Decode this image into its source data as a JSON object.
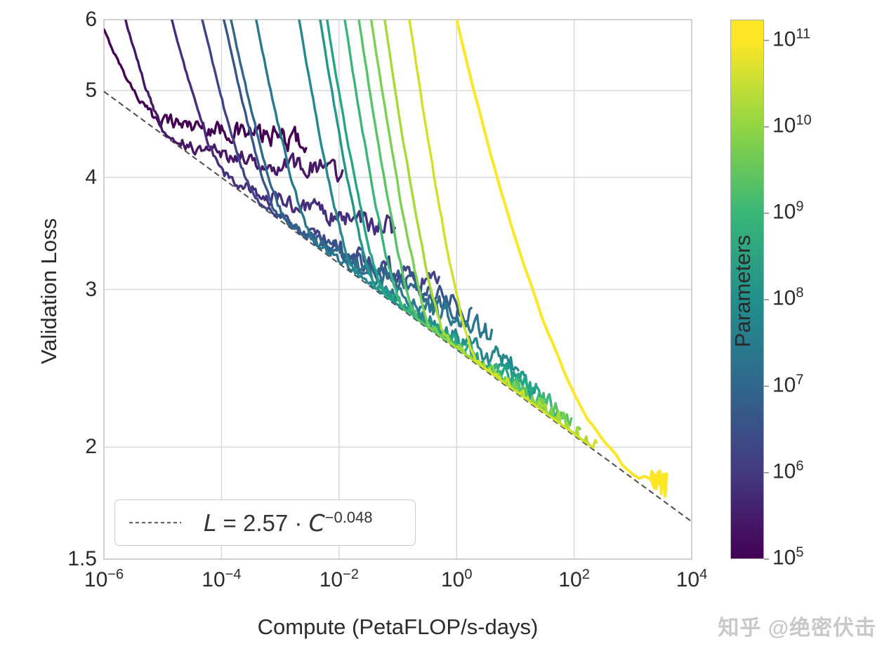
{
  "watermark": "知乎 @绝密伏击",
  "axes": {
    "x": {
      "label": "Compute (PetaFLOP/s-days)",
      "scale": "log10",
      "range_log10": [
        -6,
        4
      ],
      "ticks": [
        {
          "base": "10",
          "exp": "−6",
          "value_log10": -6
        },
        {
          "base": "10",
          "exp": "−4",
          "value_log10": -4
        },
        {
          "base": "10",
          "exp": "−2",
          "value_log10": -2
        },
        {
          "base": "10",
          "exp": "0",
          "value_log10": 0
        },
        {
          "base": "10",
          "exp": "2",
          "value_log10": 2
        },
        {
          "base": "10",
          "exp": "4",
          "value_log10": 4
        }
      ]
    },
    "y": {
      "label": "Validation Loss",
      "scale": "log10",
      "range": [
        1.5,
        6
      ],
      "ticks": [
        {
          "text": "6",
          "value": 6
        },
        {
          "text": "5",
          "value": 5
        },
        {
          "text": "4",
          "value": 4
        },
        {
          "text": "3",
          "value": 3
        },
        {
          "text": "2",
          "value": 2
        },
        {
          "text": "1.5",
          "value": 1.5
        }
      ]
    },
    "grid_color": "#d9d9d9",
    "spine_color": "#c9c9c9"
  },
  "colorbar": {
    "label": "Parameters",
    "scale": "log10",
    "range_log10": [
      5,
      11.24
    ],
    "colormap": "viridis",
    "ticks": [
      {
        "base": "10",
        "exp": "11",
        "value_log10": 11
      },
      {
        "base": "10",
        "exp": "10",
        "value_log10": 10
      },
      {
        "base": "10",
        "exp": "9",
        "value_log10": 9
      },
      {
        "base": "10",
        "exp": "8",
        "value_log10": 8
      },
      {
        "base": "10",
        "exp": "7",
        "value_log10": 7
      },
      {
        "base": "10",
        "exp": "6",
        "value_log10": 6
      },
      {
        "base": "10",
        "exp": "5",
        "value_log10": 5
      }
    ]
  },
  "legend": {
    "line_style": "dashed",
    "formula": {
      "lhs": "L",
      "eq": " = ",
      "coef": "2.57",
      "dot": " · ",
      "var": "C",
      "exp": "−0.048"
    }
  },
  "chart_data": {
    "type": "line",
    "title": "",
    "xlabel": "Compute (PetaFLOP/s-days)",
    "ylabel": "Validation Loss",
    "x_log": true,
    "y_log": true,
    "xlim_log10": [
      -6,
      4
    ],
    "ylim": [
      1.5,
      6
    ],
    "grid": true,
    "frontier_fit": {
      "formula": "L = 2.57 * C^-0.048",
      "coef": 2.57,
      "exponent": -0.048,
      "color": "#4d4d4d",
      "style": "dashed",
      "c_range_log10": [
        -6,
        4
      ]
    },
    "series_description": "Learning curves (loss vs training compute) for models of increasing parameter count; each curve enters at loss 6 at c_top_log10, descends steeply, becomes tangent to the frontier fit near c_tan_log10, then flattens toward loss_end at c_end_log10.",
    "series": [
      {
        "params_log10": 5.0,
        "color": "#440154",
        "c_top_log10": -6.0,
        "loss_top": 5.84,
        "c_tan_log10": -5.2,
        "c_end_log10": -2.56,
        "loss_end": 4.4,
        "tan_offset": 0.015,
        "steep_p": 1.3,
        "tail_p": 0.6,
        "width": 3.4
      },
      {
        "params_log10": 5.4,
        "color": "#471868",
        "c_top_log10": -5.65,
        "loss_top": 6.05,
        "c_tan_log10": -4.94,
        "c_end_log10": -1.94,
        "loss_end": 4.05,
        "tan_offset": 0.004,
        "steep_p": 1.3,
        "tail_p": 0.6,
        "width": 3.4
      },
      {
        "params_log10": 5.8,
        "color": "#452e7b",
        "c_top_log10": -4.86,
        "loss_top": 6.05,
        "c_tan_log10": -3.95,
        "c_end_log10": -1.05,
        "loss_end": 3.5,
        "tan_offset": 0.005,
        "steep_p": 1.3,
        "tail_p": 0.7,
        "width": 3.4
      },
      {
        "params_log10": 6.2,
        "color": "#404387",
        "c_top_log10": -4.34,
        "loss_top": 6.05,
        "c_tan_log10": -3.42,
        "c_end_log10": -0.3,
        "loss_end": 3.02,
        "tan_offset": 0.005,
        "steep_p": 1.3,
        "tail_p": 0.75,
        "width": 3.4
      },
      {
        "params_log10": 6.6,
        "color": "#38558b",
        "c_top_log10": -3.97,
        "loss_top": 6.05,
        "c_tan_log10": -3.05,
        "c_end_log10": 0.05,
        "loss_end": 2.88,
        "tan_offset": 0.005,
        "steep_p": 1.3,
        "tail_p": 0.8,
        "width": 3.4
      },
      {
        "params_log10": 7.0,
        "color": "#30678d",
        "c_top_log10": -3.85,
        "loss_top": 6.05,
        "c_tan_log10": -2.9,
        "c_end_log10": 0.25,
        "loss_end": 2.82,
        "tan_offset": 0.005,
        "steep_p": 1.3,
        "tail_p": 0.8,
        "width": 3.4
      },
      {
        "params_log10": 7.4,
        "color": "#29788e",
        "c_top_log10": -3.42,
        "loss_top": 6.05,
        "c_tan_log10": -2.45,
        "c_end_log10": 0.6,
        "loss_end": 2.66,
        "tan_offset": 0.005,
        "steep_p": 1.3,
        "tail_p": 0.85,
        "width": 3.4
      },
      {
        "params_log10": 7.8,
        "color": "#24888d",
        "c_top_log10": -2.69,
        "loss_top": 6.05,
        "c_tan_log10": -1.75,
        "c_end_log10": 1.05,
        "loss_end": 2.44,
        "tan_offset": 0.005,
        "steep_p": 1.3,
        "tail_p": 0.85,
        "width": 3.4
      },
      {
        "params_log10": 8.2,
        "color": "#219889",
        "c_top_log10": -2.33,
        "loss_top": 6.05,
        "c_tan_log10": -1.4,
        "c_end_log10": 1.35,
        "loss_end": 2.32,
        "tan_offset": 0.005,
        "steep_p": 1.3,
        "tail_p": 0.85,
        "width": 3.4
      },
      {
        "params_log10": 8.6,
        "color": "#22a784",
        "c_top_log10": -2.21,
        "loss_top": 6.05,
        "c_tan_log10": -1.25,
        "c_end_log10": 1.5,
        "loss_end": 2.27,
        "tan_offset": 0.005,
        "steep_p": 1.3,
        "tail_p": 0.85,
        "width": 3.4
      },
      {
        "params_log10": 9.0,
        "color": "#39b677",
        "c_top_log10": -1.91,
        "loss_top": 6.05,
        "c_tan_log10": -0.95,
        "c_end_log10": 1.75,
        "loss_end": 2.18,
        "tan_offset": 0.005,
        "steep_p": 1.3,
        "tail_p": 0.85,
        "width": 3.4
      },
      {
        "params_log10": 9.4,
        "color": "#56c466",
        "c_top_log10": -1.67,
        "loss_top": 6.05,
        "c_tan_log10": -0.7,
        "c_end_log10": 1.95,
        "loss_end": 2.12,
        "tan_offset": 0.005,
        "steep_p": 1.3,
        "tail_p": 0.85,
        "width": 3.4
      },
      {
        "params_log10": 9.8,
        "color": "#7ad151",
        "c_top_log10": -1.46,
        "loss_top": 6.05,
        "c_tan_log10": -0.45,
        "c_end_log10": 2.1,
        "loss_end": 2.07,
        "tan_offset": 0.005,
        "steep_p": 1.3,
        "tail_p": 0.85,
        "width": 3.4
      },
      {
        "params_log10": 10.2,
        "color": "#a7da34",
        "c_top_log10": -1.23,
        "loss_top": 6.05,
        "c_tan_log10": -0.2,
        "c_end_log10": 2.25,
        "loss_end": 2.02,
        "tan_offset": 0.005,
        "steep_p": 1.3,
        "tail_p": 0.85,
        "width": 3.4
      },
      {
        "params_log10": 10.6,
        "color": "#d2e126",
        "c_top_log10": -0.81,
        "loss_top": 6.05,
        "c_tan_log10": 0.3,
        "c_end_log10": 2.38,
        "loss_end": 1.96,
        "tan_offset": 0.005,
        "steep_p": 1.3,
        "tail_p": 0.9,
        "width": 3.4
      },
      {
        "params_log10": 11.0,
        "color": "#fde725",
        "c_top_log10": -0.01,
        "loss_top": 6.05,
        "c_tan_log10": 3.3,
        "c_end_log10": 3.57,
        "loss_end": 1.81,
        "tan_offset": 0.015,
        "steep_p": 1.8,
        "tail_p": 0.9,
        "width": 4.0
      }
    ]
  }
}
